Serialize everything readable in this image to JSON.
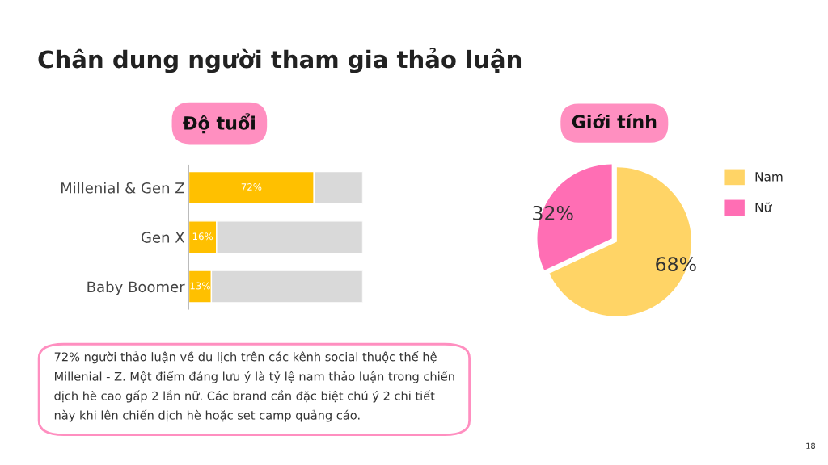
{
  "chart_data": [
    {
      "type": "bar",
      "title": "Độ tuổi",
      "orientation": "horizontal",
      "stacked": true,
      "tick_labels": "y",
      "categories": [
        "Millenial & Gen Z",
        "Gen X",
        "Baby Boomer"
      ],
      "series": [
        {
          "color": "#ffc000",
          "values": [
            72,
            16,
            13
          ],
          "value_labels": [
            "72%",
            "16%",
            "13%"
          ]
        },
        {
          "color": "#d9d9d9",
          "values": [
            28,
            84,
            87
          ]
        }
      ],
      "annotations": [
        "Chân dung người tham gia thảo luận",
        "72% người thảo luận về du lịch trên các kênh social thuộc thế hệ Millenial - Z. Một điểm đáng lưu ý là tỷ lệ nam thảo luận trong chiến dịch hè cao gấp 2 lần nữ. Các brand cần đặc biệt chú ý 2 chi tiết này khi lên chiến dịch hè hoặc set camp quảng cáo.",
        "18"
      ]
    },
    {
      "type": "pie",
      "title": "Giới tính",
      "legend": "right",
      "categories": [
        "Nam",
        "Nữ"
      ],
      "values": [
        68,
        32
      ],
      "colors": [
        "#ffd466",
        "#ff6eb4"
      ],
      "value_labels": [
        "68%",
        "32%"
      ]
    }
  ]
}
